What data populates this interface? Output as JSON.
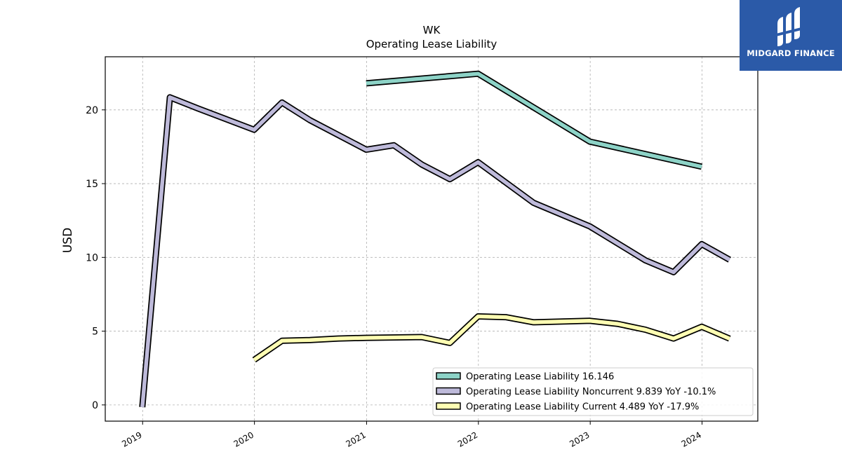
{
  "brand": {
    "name": "MIDGARD FINANCE",
    "bg_color": "#2b5aa8"
  },
  "chart_data": {
    "type": "line",
    "title": "WK",
    "subtitle": "Operating Lease Liability",
    "xlabel": "",
    "ylabel": "USD",
    "xlim": [
      "2018-09-01",
      "2024-07-01"
    ],
    "ylim": [
      -1.1,
      23.6
    ],
    "x_ticks": [
      "2019",
      "2020",
      "2021",
      "2022",
      "2023",
      "2024"
    ],
    "y_ticks": [
      0,
      5,
      10,
      15,
      20
    ],
    "grid": true,
    "legend_position": "lower-right",
    "series": [
      {
        "name": "Operating Lease Liability",
        "legend_label": "Operating Lease Liability  16.146",
        "color": "#8dd3c7",
        "points": [
          [
            "2020-12-31",
            21.8
          ],
          [
            "2021-12-31",
            22.45
          ],
          [
            "2022-12-31",
            17.85
          ],
          [
            "2023-12-31",
            16.146
          ]
        ]
      },
      {
        "name": "Operating Lease Liability Noncurrent",
        "legend_label": "Operating Lease Liability Noncurrent  9.839 YoY -10.1%",
        "color": "#bebada",
        "points": [
          [
            "2018-12-31",
            -0.15
          ],
          [
            "2019-03-31",
            20.85
          ],
          [
            "2019-06-30",
            20.1
          ],
          [
            "2019-12-31",
            18.65
          ],
          [
            "2020-03-31",
            20.5
          ],
          [
            "2020-06-30",
            19.3
          ],
          [
            "2020-12-31",
            17.3
          ],
          [
            "2021-03-31",
            17.6
          ],
          [
            "2021-06-30",
            16.3
          ],
          [
            "2021-09-30",
            15.3
          ],
          [
            "2021-12-31",
            16.45
          ],
          [
            "2022-06-30",
            13.7
          ],
          [
            "2022-12-31",
            12.1
          ],
          [
            "2023-06-30",
            9.8
          ],
          [
            "2023-09-30",
            9.0
          ],
          [
            "2023-12-31",
            10.9
          ],
          [
            "2024-03-31",
            9.839
          ]
        ]
      },
      {
        "name": "Operating Lease Liability Current",
        "legend_label": "Operating Lease Liability Current  4.489 YoY -17.9%",
        "color": "#ffffb3",
        "points": [
          [
            "2019-12-31",
            3.05
          ],
          [
            "2020-03-31",
            4.35
          ],
          [
            "2020-06-30",
            4.4
          ],
          [
            "2020-09-30",
            4.5
          ],
          [
            "2020-12-31",
            4.55
          ],
          [
            "2021-06-30",
            4.6
          ],
          [
            "2021-09-30",
            4.2
          ],
          [
            "2021-12-31",
            6.0
          ],
          [
            "2022-03-31",
            5.95
          ],
          [
            "2022-06-30",
            5.6
          ],
          [
            "2022-12-31",
            5.7
          ],
          [
            "2023-03-31",
            5.5
          ],
          [
            "2023-06-30",
            5.1
          ],
          [
            "2023-09-30",
            4.5
          ],
          [
            "2023-12-31",
            5.3
          ],
          [
            "2024-03-31",
            4.489
          ]
        ]
      }
    ]
  }
}
